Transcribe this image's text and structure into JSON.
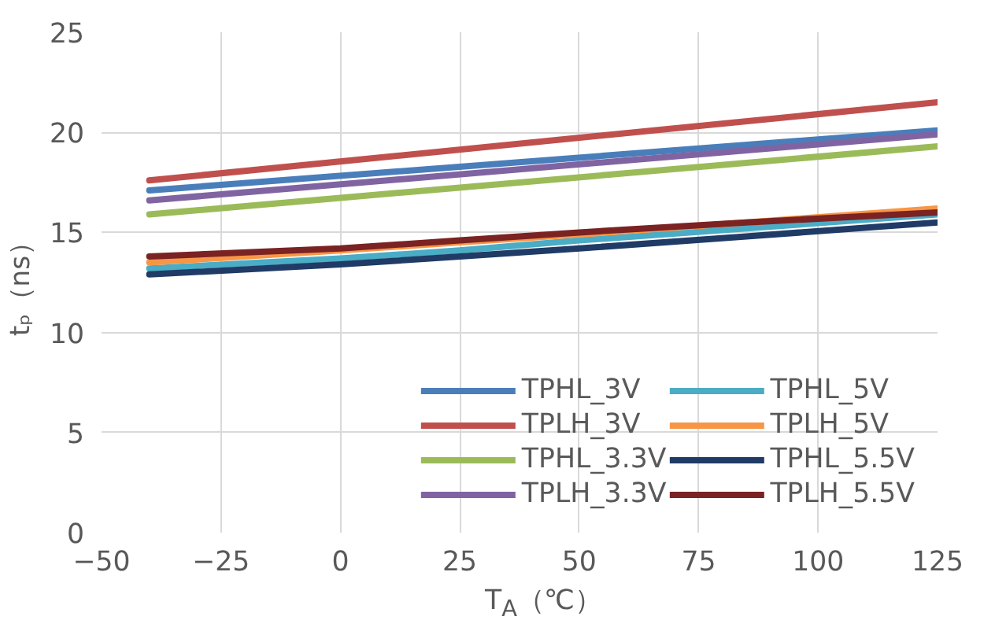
{
  "chart_data": {
    "type": "line",
    "xlabel": "T$_{A}$（℃）",
    "ylabel": "tₚ（ns）",
    "xlim": [
      -50,
      125
    ],
    "xticks": [
      -50,
      -25,
      0,
      25,
      50,
      75,
      100,
      125
    ],
    "ylim": [
      0,
      25
    ],
    "yticks": [
      0,
      5,
      10,
      15,
      20,
      25
    ],
    "grid": true,
    "legend": "bottom right",
    "line_style": "solid",
    "marker": "none",
    "series": [
      {
        "name": "TPHL_3V",
        "color": "#4a7ebb",
        "x": [
          -40,
          125
        ],
        "values": [
          17.1,
          20.1
        ]
      },
      {
        "name": "TPLH_3V",
        "color": "#c0504d",
        "x": [
          -40,
          125
        ],
        "values": [
          17.6,
          21.5
        ]
      },
      {
        "name": "TPHL_3.3V",
        "color": "#9bbb59",
        "x": [
          -40,
          125
        ],
        "values": [
          15.9,
          19.3
        ]
      },
      {
        "name": "TPLH_3.3V",
        "color": "#8064a2",
        "x": [
          -40,
          125
        ],
        "values": [
          16.6,
          19.9
        ]
      },
      {
        "name": "TPHL_5V",
        "color": "#4bacc6",
        "x": [
          -40,
          0,
          25,
          50,
          85,
          125
        ],
        "values": [
          13.2,
          13.7,
          14.1,
          14.6,
          15.2,
          15.9
        ]
      },
      {
        "name": "TPLH_5V",
        "color": "#f79646",
        "x": [
          -40,
          0,
          25,
          50,
          85,
          125
        ],
        "values": [
          13.5,
          14.1,
          14.5,
          14.9,
          15.5,
          16.2
        ]
      },
      {
        "name": "TPHL_5.5V",
        "color": "#1f3b66",
        "x": [
          -40,
          0,
          25,
          50,
          85,
          125
        ],
        "values": [
          12.9,
          13.4,
          13.8,
          14.2,
          14.8,
          15.5
        ]
      },
      {
        "name": "TPLH_5.5V",
        "color": "#7b2222",
        "x": [
          -40,
          0,
          25,
          50,
          85,
          125
        ],
        "values": [
          13.8,
          14.2,
          14.6,
          15.0,
          15.5,
          16.0
        ]
      }
    ]
  }
}
